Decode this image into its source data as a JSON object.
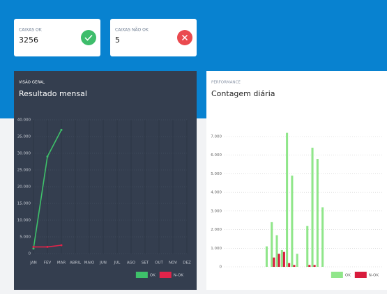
{
  "cards": [
    {
      "label": "CAIXAS OK",
      "value": 3256
    },
    {
      "label": "CAIXAS NÃO OK",
      "value": 5
    }
  ],
  "chart_data": [
    {
      "type": "line",
      "subtitle": "VISÃO GERAL",
      "title": "Resultado mensal",
      "categories": [
        "JAN",
        "FEV",
        "MAR",
        "ABRIL",
        "MAIO",
        "JUN",
        "JUL",
        "AGO",
        "SET",
        "OUT",
        "NOV",
        "DEZ"
      ],
      "series": [
        {
          "name": "OK",
          "color": "#3ec16a",
          "values": [
            1500,
            29000,
            37000,
            null,
            null,
            null,
            null,
            null,
            null,
            null,
            null,
            null
          ]
        },
        {
          "name": "N-OK",
          "color": "#e0244a",
          "values": [
            2000,
            2000,
            2500,
            null,
            null,
            null,
            null,
            null,
            null,
            null,
            null,
            null
          ]
        }
      ],
      "ylim": [
        0,
        40000
      ],
      "yticks": [
        0,
        {
          "value": 5000,
          "label": "5.000"
        },
        {
          "value": 10000,
          "label": "10.000"
        },
        {
          "value": 15000,
          "label": "15.000"
        },
        {
          "value": 20000,
          "label": "20.000"
        },
        {
          "value": 25000,
          "label": "25.000"
        },
        {
          "value": 30000,
          "label": "30.000"
        },
        {
          "value": 35000,
          "label": "35.000"
        },
        {
          "value": 40000,
          "label": "40.000"
        }
      ],
      "grid": true,
      "legend": "bottom-right"
    },
    {
      "type": "bar",
      "subtitle": "PERFORMANCE",
      "title": "Contagem diária",
      "categories": [
        null,
        null,
        null,
        null,
        null,
        null,
        null,
        null,
        null,
        null,
        null,
        null,
        null,
        null,
        null,
        null,
        null,
        null,
        null,
        null,
        null,
        null,
        null,
        null,
        null,
        null,
        null,
        null,
        null,
        null,
        null
      ],
      "series": [
        {
          "name": "OK",
          "color": "#90e68a",
          "values": [
            0,
            0,
            0,
            0,
            0,
            0,
            0,
            0,
            1100,
            2400,
            1700,
            900,
            7200,
            4900,
            700,
            0,
            2200,
            6400,
            5800,
            3200,
            0,
            0,
            0,
            0,
            0,
            0,
            0,
            0,
            0,
            0,
            0
          ]
        },
        {
          "name": "N-OK",
          "color": "#d81b3c",
          "values": [
            0,
            0,
            0,
            0,
            0,
            0,
            0,
            0,
            0,
            500,
            700,
            800,
            200,
            100,
            0,
            0,
            100,
            100,
            0,
            0,
            0,
            0,
            0,
            0,
            0,
            0,
            0,
            0,
            0,
            0,
            0
          ]
        }
      ],
      "ylim": [
        0,
        7000
      ],
      "yticks": [
        0,
        {
          "value": 1000,
          "label": "1.000"
        },
        {
          "value": 2000,
          "label": "2.000"
        },
        {
          "value": 3000,
          "label": "3.000"
        },
        {
          "value": 4000,
          "label": "4.000"
        },
        {
          "value": 5000,
          "label": "5.000"
        },
        {
          "value": 6000,
          "label": "6.000"
        },
        {
          "value": 7000,
          "label": "7.000"
        }
      ],
      "grid": true,
      "legend": "bottom-right"
    }
  ]
}
